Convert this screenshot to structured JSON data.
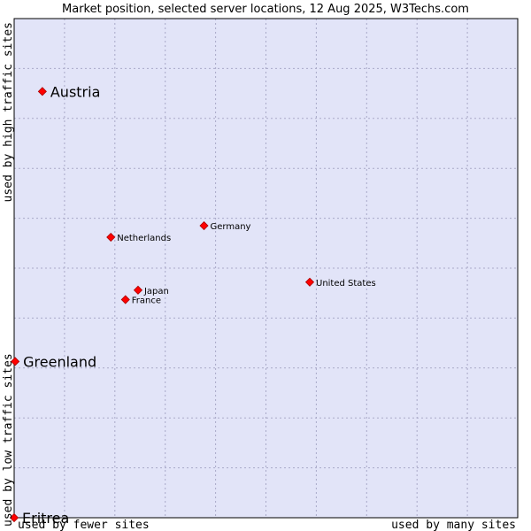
{
  "chart_data": {
    "type": "scatter",
    "title": "Market position, selected server locations, 12 Aug 2025, W3Techs.com",
    "xlabel_left": "used by fewer sites",
    "xlabel_right": "used by many sites",
    "ylabel_bottom": "used by low traffic sites",
    "ylabel_top": "used by high traffic sites",
    "xlim": [
      0,
      100
    ],
    "ylim": [
      0,
      100
    ],
    "grid": true,
    "colors": {
      "background": "#e2e4f8",
      "grid": "#a9a9c8",
      "border": "#000000",
      "marker": "#ff0000",
      "marker_edge": "#aa0000"
    },
    "points": [
      {
        "name": "Austria",
        "x": 5.6,
        "y": 85.4,
        "emphasis": true
      },
      {
        "name": "Greenland",
        "x": 0.2,
        "y": 31.3,
        "emphasis": true
      },
      {
        "name": "Eritrea",
        "x": 0.0,
        "y": 0.0,
        "emphasis": true
      },
      {
        "name": "Germany",
        "x": 37.7,
        "y": 58.5,
        "emphasis": false
      },
      {
        "name": "Netherlands",
        "x": 19.2,
        "y": 56.2,
        "emphasis": false
      },
      {
        "name": "United States",
        "x": 58.7,
        "y": 47.2,
        "emphasis": false
      },
      {
        "name": "Japan",
        "x": 24.6,
        "y": 45.6,
        "emphasis": false
      },
      {
        "name": "France",
        "x": 22.1,
        "y": 43.7,
        "emphasis": false
      }
    ]
  }
}
